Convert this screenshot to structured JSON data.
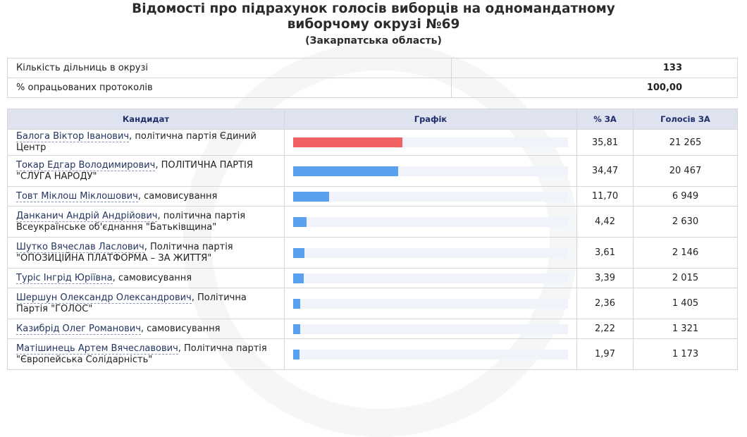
{
  "title_line1": "Відомості про підрахунок голосів виборців на одномандатному",
  "title_line2": "виборчому окрузі №69",
  "subtitle": "(Закарпатська область)",
  "info": [
    {
      "label": "Кількість дільниць в окрузі",
      "value": "133"
    },
    {
      "label": "% опрацьованих протоколів",
      "value": "100,00"
    }
  ],
  "headers": {
    "candidate": "Кандидат",
    "graph": "Графік",
    "percent": "% ЗА",
    "votes": "Голосів ЗА"
  },
  "colors": {
    "leader_bar": "#f26161",
    "other_bar": "#5aa0f0",
    "bar_track": "#f0f3f9",
    "header_bg": "#dfe3ef"
  },
  "rows": [
    {
      "name": "Балога Віктор Іванович",
      "party": ", політична партія Єдиний Центр",
      "percent": "35,81",
      "votes": "21 265",
      "share": 35.81
    },
    {
      "name": "Токар Едгар Володимирович",
      "party": ", ПОЛІТИЧНА ПАРТІЯ \"СЛУГА НАРОДУ\"",
      "percent": "34,47",
      "votes": "20 467",
      "share": 34.47
    },
    {
      "name": "Товт Міклош Міклошович",
      "party": ", самовисування",
      "percent": "11,70",
      "votes": "6 949",
      "share": 11.7
    },
    {
      "name": "Данканич Андрій Андрійович",
      "party": ", політична партія Всеукраїнське об'єднання \"Батьківщина\"",
      "percent": "4,42",
      "votes": "2 630",
      "share": 4.42
    },
    {
      "name": "Шутко Вячеслав Ласлович",
      "party": ", Політична партія \"ОПОЗИЦІЙНА ПЛАТФОРМА – ЗА ЖИТТЯ\"",
      "percent": "3,61",
      "votes": "2 146",
      "share": 3.61
    },
    {
      "name": "Туріс Інгрід Юріївна",
      "party": ", самовисування",
      "percent": "3,39",
      "votes": "2 015",
      "share": 3.39
    },
    {
      "name": "Шершун Олександр Олександрович",
      "party": ", Політична Партія \"ГОЛОС\"",
      "percent": "2,36",
      "votes": "1 405",
      "share": 2.36
    },
    {
      "name": "Казибрід Олег Романович",
      "party": ", самовисування",
      "percent": "2,22",
      "votes": "1 321",
      "share": 2.22
    },
    {
      "name": "Матішинець Артем Вячеславович",
      "party": ", Політична партія \"Європейська Солідарність\"",
      "percent": "1,97",
      "votes": "1 173",
      "share": 1.97
    }
  ]
}
